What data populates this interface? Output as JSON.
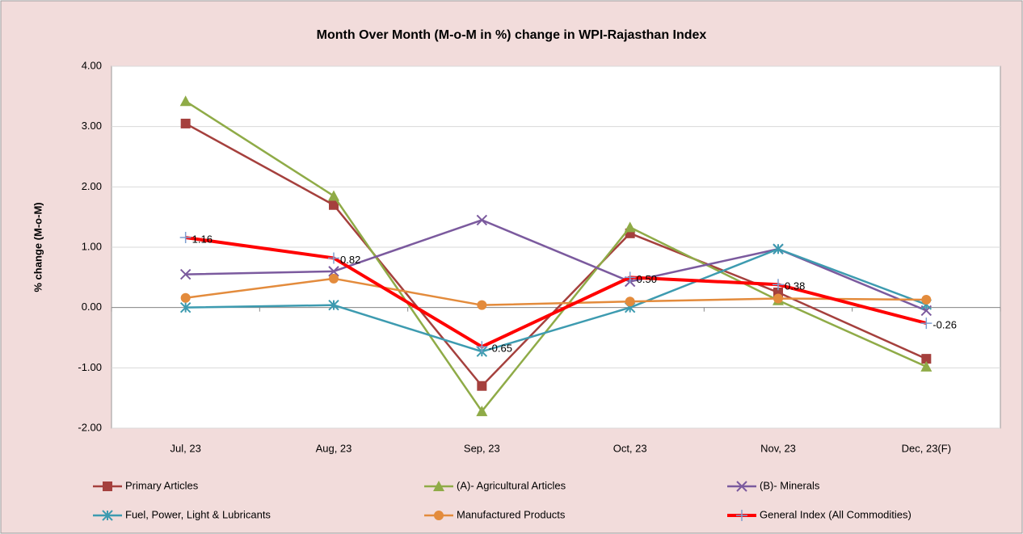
{
  "chart_data": {
    "type": "line",
    "title": "Month Over Month (M-o-M in %) change in WPI-Rajasthan Index",
    "y_label": "% change (M-o-M)",
    "categories": [
      "Jul, 23",
      "Aug, 23",
      "Sep, 23",
      "Oct, 23",
      "Nov, 23",
      "Dec, 23(F)"
    ],
    "series": [
      {
        "name": "Primary Articles",
        "color": "#a5403d",
        "marker": "square",
        "values": [
          3.05,
          1.7,
          -1.3,
          1.23,
          0.25,
          -0.85
        ]
      },
      {
        "name": "(A)- Agricultural Articles",
        "color": "#8fab47",
        "marker": "triangle",
        "values": [
          3.42,
          1.85,
          -1.72,
          1.33,
          0.12,
          -0.98
        ]
      },
      {
        "name": "(B)- Minerals",
        "color": "#7b5a9e",
        "marker": "x",
        "values": [
          0.55,
          0.6,
          1.45,
          0.43,
          0.97,
          -0.05
        ]
      },
      {
        "name": "Fuel, Power, Light & Lubricants",
        "color": "#3d9bb0",
        "marker": "star",
        "values": [
          0.0,
          0.04,
          -0.73,
          0.0,
          0.97,
          0.05
        ]
      },
      {
        "name": "Manufactured Products",
        "color": "#e38b3c",
        "marker": "circle",
        "values": [
          0.16,
          0.48,
          0.04,
          0.1,
          0.15,
          0.13
        ]
      },
      {
        "name": "General Index (All Commodities)",
        "color": "#ff0000",
        "marker": "plus",
        "width": 4,
        "values": [
          1.16,
          0.82,
          -0.65,
          0.5,
          0.38,
          -0.26
        ],
        "value_labels": [
          "1.16",
          "0.82",
          "-0.65",
          "0.50",
          "0.38",
          "-0.26"
        ]
      }
    ],
    "ylim": [
      -2,
      4
    ],
    "yticks": [
      {
        "value": -2,
        "label": "-2.00"
      },
      {
        "value": -1,
        "label": "-1.00"
      },
      {
        "value": 0,
        "label": "0.00"
      },
      {
        "value": 1,
        "label": "1.00"
      },
      {
        "value": 2,
        "label": "2.00"
      },
      {
        "value": 3,
        "label": "3.00"
      },
      {
        "value": 4,
        "label": "4.00"
      }
    ],
    "grid": true,
    "legend": "bottom"
  }
}
